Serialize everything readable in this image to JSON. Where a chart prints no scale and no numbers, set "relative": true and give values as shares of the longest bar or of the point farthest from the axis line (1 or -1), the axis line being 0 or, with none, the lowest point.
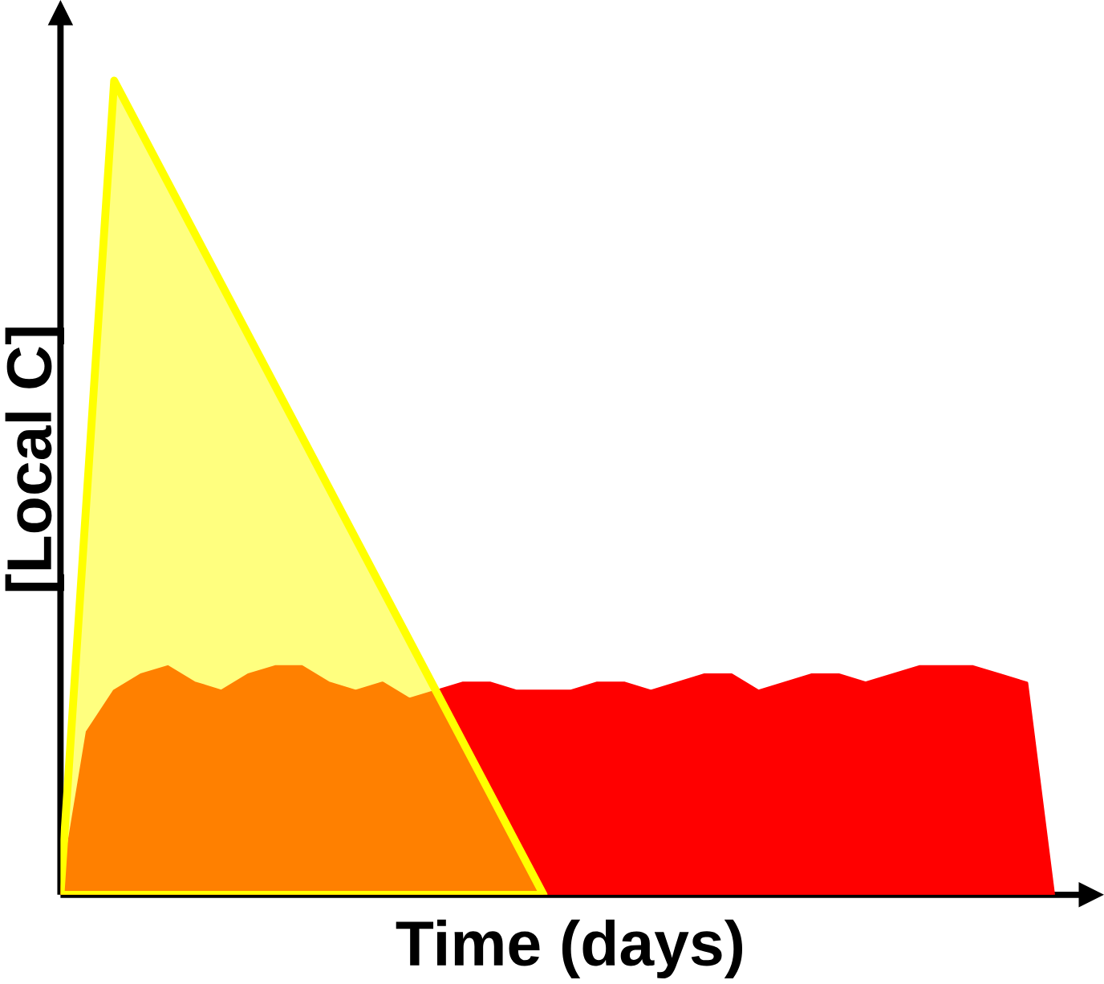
{
  "chart_data": {
    "type": "area",
    "relative": true,
    "xlabel": "Time (days)",
    "ylabel": "[Local C]",
    "categories": [
      null,
      null,
      null,
      null,
      null,
      null,
      null,
      null,
      null,
      null,
      null,
      null,
      null,
      null,
      null,
      null,
      null,
      null,
      null,
      null,
      null,
      null,
      null,
      null,
      null,
      null,
      null,
      null,
      null,
      null,
      null,
      null,
      null,
      null,
      null,
      null,
      null,
      null
    ],
    "series": [
      {
        "color": "#ff0000",
        "values": [
          0,
          0.2,
          0.25,
          0.27,
          0.28,
          0.26,
          0.25,
          0.27,
          0.28,
          0.28,
          0.26,
          0.25,
          0.26,
          0.24,
          0.25,
          0.26,
          0.26,
          0.25,
          0.25,
          0.25,
          0.26,
          0.26,
          0.25,
          0.26,
          0.27,
          0.27,
          0.25,
          0.26,
          0.27,
          0.27,
          0.26,
          0.27,
          0.28,
          0.28,
          0.28,
          0.27,
          0.26,
          0
        ]
      },
      {
        "color": "#ffff00",
        "values": [
          0,
          0.5,
          1,
          0.9375,
          0.875,
          0.8125,
          0.75,
          0.6875,
          0.625,
          0.5625,
          0.5,
          0.4375,
          0.375,
          0.3125,
          0.25,
          0.1875,
          0.125,
          0.0625,
          0,
          null,
          null,
          null,
          null,
          null,
          null,
          null,
          null,
          null,
          null,
          null,
          null,
          null,
          null,
          null,
          null,
          null,
          null,
          null
        ]
      }
    ]
  }
}
